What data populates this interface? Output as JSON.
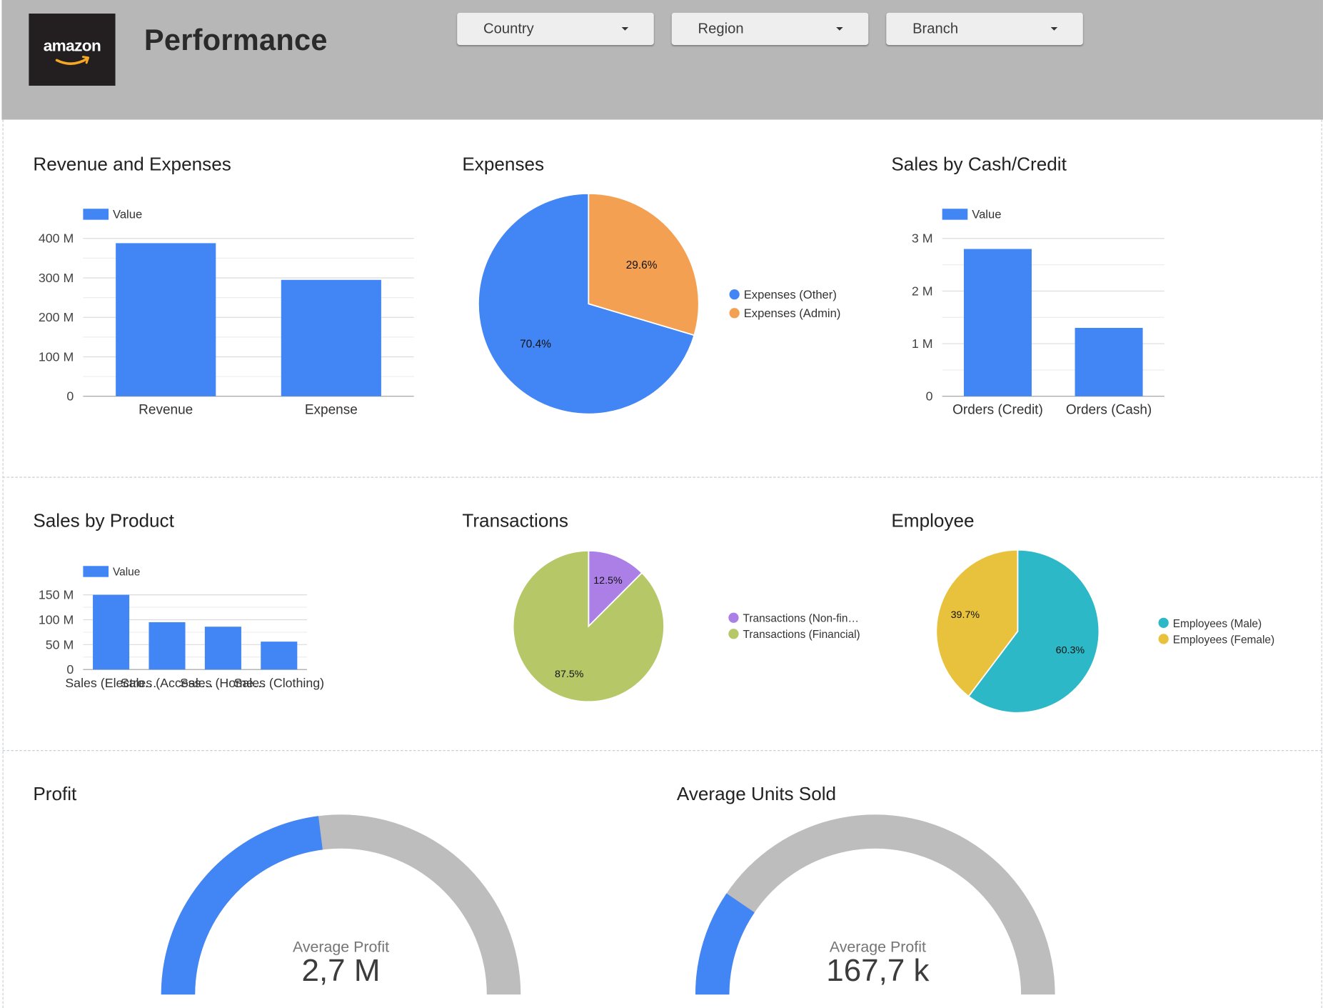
{
  "header": {
    "logo_text": "amazon",
    "title": "Performance",
    "filters": [
      "Country",
      "Region",
      "Branch"
    ]
  },
  "colors": {
    "blue": "#4285f4",
    "orange": "#f4a052",
    "purple": "#ab7fe6",
    "green": "#b5c767",
    "teal": "#2db8c8",
    "yellow": "#e8c23c",
    "gauge_track": "#bdbdbd"
  },
  "chart_data": [
    {
      "id": "revenue_expenses",
      "type": "bar",
      "title": "Revenue and Expenses",
      "legend": "Value",
      "categories": [
        "Revenue",
        "Expense"
      ],
      "values": [
        388,
        295
      ],
      "unit": "M",
      "ylim": [
        0,
        400
      ],
      "yticks": [
        0,
        100,
        200,
        300,
        400
      ],
      "ytick_labels": [
        "0",
        "100 M",
        "200 M",
        "300 M",
        "400 M"
      ]
    },
    {
      "id": "expenses",
      "type": "pie",
      "title": "Expenses",
      "labels": [
        "Expenses (Other)",
        "Expenses (Admin)"
      ],
      "values": [
        70.4,
        29.6
      ],
      "value_labels": [
        "70.4%",
        "29.6%"
      ],
      "legend_position": "right"
    },
    {
      "id": "cash_credit",
      "type": "bar",
      "title": "Sales by Cash/Credit",
      "legend": "Value",
      "categories": [
        "Orders (Credit)",
        "Orders (Cash)"
      ],
      "values": [
        2.8,
        1.3
      ],
      "unit": "M",
      "ylim": [
        0,
        3
      ],
      "yticks": [
        0,
        1,
        2,
        3
      ],
      "ytick_labels": [
        "0",
        "1 M",
        "2 M",
        "3 M"
      ]
    },
    {
      "id": "sales_product",
      "type": "bar",
      "title": "Sales by Product",
      "legend": "Value",
      "categories": [
        "Sales (Electro…",
        "Sales (Access…",
        "Sales (Home…",
        "Sales (Clothing)"
      ],
      "values": [
        150,
        95,
        86,
        56
      ],
      "unit": "M",
      "ylim": [
        0,
        150
      ],
      "yticks": [
        0,
        50,
        100,
        150
      ],
      "ytick_labels": [
        "0",
        "50 M",
        "100 M",
        "150 M"
      ]
    },
    {
      "id": "transactions",
      "type": "pie",
      "title": "Transactions",
      "labels": [
        "Transactions (Non-fin…",
        "Transactions (Financial)"
      ],
      "values": [
        12.5,
        87.5
      ],
      "value_labels": [
        "12.5%",
        "87.5%"
      ],
      "legend_position": "right"
    },
    {
      "id": "employee",
      "type": "pie",
      "title": "Employee",
      "labels": [
        "Employees (Male)",
        "Employees (Female)"
      ],
      "values": [
        60.3,
        39.7
      ],
      "value_labels": [
        "60.3%",
        "39.7%"
      ],
      "legend_position": "right"
    },
    {
      "id": "profit",
      "type": "gauge",
      "title": "Profit",
      "caption": "Average Profit",
      "value_label": "2,7 M",
      "fraction": 0.46
    },
    {
      "id": "units",
      "type": "gauge",
      "title": "Average Units Sold",
      "caption": "Average Profit",
      "value_label": "167,7 k",
      "fraction": 0.19
    }
  ]
}
